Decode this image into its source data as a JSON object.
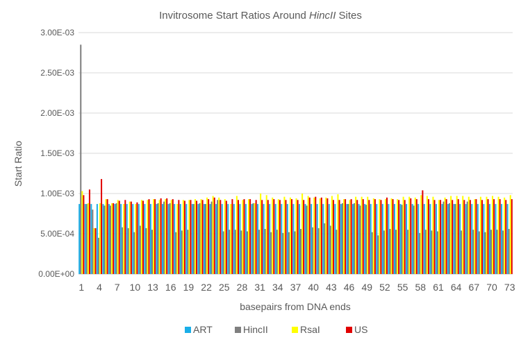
{
  "chart_data": {
    "type": "bar",
    "title_parts": [
      "Invitrosome  Start Ratios Around ",
      "HincII",
      " Sites"
    ],
    "xlabel": "basepairs from DNA ends",
    "ylabel": "Start Ratio",
    "ylim": [
      0,
      0.003
    ],
    "y_ticks": [
      {
        "value": 0,
        "label": "0.00E+00"
      },
      {
        "value": 0.0005,
        "label": "5.00E-04"
      },
      {
        "value": 0.001,
        "label": "1.00E-03"
      },
      {
        "value": 0.0015,
        "label": "1.50E-03"
      },
      {
        "value": 0.002,
        "label": "2.00E-03"
      },
      {
        "value": 0.0025,
        "label": "2.50E-03"
      },
      {
        "value": 0.003,
        "label": "3.00E-03"
      }
    ],
    "x_tick_labels": [
      "1",
      "4",
      "7",
      "10",
      "13",
      "16",
      "19",
      "22",
      "25",
      "28",
      "31",
      "34",
      "37",
      "40",
      "43",
      "46",
      "49",
      "52",
      "55",
      "58",
      "61",
      "64",
      "67",
      "70",
      "73"
    ],
    "x_tick_positions": [
      1,
      4,
      7,
      10,
      13,
      16,
      19,
      22,
      25,
      28,
      31,
      34,
      37,
      40,
      43,
      46,
      49,
      52,
      55,
      58,
      61,
      64,
      67,
      70,
      73
    ],
    "grid": true,
    "legend_position": "bottom",
    "categories": [
      1,
      2,
      3,
      4,
      5,
      6,
      7,
      8,
      9,
      10,
      11,
      12,
      13,
      14,
      15,
      16,
      17,
      18,
      19,
      20,
      21,
      22,
      23,
      24,
      25,
      26,
      27,
      28,
      29,
      30,
      31,
      32,
      33,
      34,
      35,
      36,
      37,
      38,
      39,
      40,
      41,
      42,
      43,
      44,
      45,
      46,
      47,
      48,
      49,
      50,
      51,
      52,
      53,
      54,
      55,
      56,
      57,
      58,
      59,
      60,
      61,
      62,
      63,
      64,
      65,
      66,
      67,
      68,
      69,
      70,
      71,
      72,
      73
    ],
    "series": [
      {
        "name": "ART",
        "color": "#1aaee8",
        "values": [
          0.00087,
          0.00087,
          0.00087,
          0.00087,
          0.00087,
          0.00087,
          0.00087,
          0.00087,
          0.00087,
          0.00087,
          0.00087,
          0.00087,
          0.00087,
          0.00087,
          0.00087,
          0.00087,
          0.00087,
          0.00087,
          0.00087,
          0.00087,
          0.00087,
          0.00087,
          0.00087,
          0.00087,
          0.00087,
          0.00087,
          0.00087,
          0.00087,
          0.00087,
          0.00087,
          0.00087,
          0.00087,
          0.00087,
          0.00087,
          0.00087,
          0.00087,
          0.00087,
          0.00087,
          0.00087,
          0.00087,
          0.00087,
          0.00087,
          0.00087,
          0.00087,
          0.00087,
          0.00087,
          0.00087,
          0.00087,
          0.00087,
          0.00087,
          0.00087,
          0.00087,
          0.00087,
          0.00087,
          0.00087,
          0.00087,
          0.00087,
          0.00087,
          0.00087,
          0.00087,
          0.00087,
          0.00087,
          0.00087,
          0.00087,
          0.00087,
          0.00087,
          0.00087,
          0.00087,
          0.00087,
          0.00087,
          0.00087,
          0.00087,
          0.00087
        ]
      },
      {
        "name": "HincII",
        "color": "#7f7f7f",
        "values": [
          0.00285,
          0.00087,
          0.0008,
          0.00045,
          0.00085,
          0.00085,
          0.00088,
          0.00058,
          0.00057,
          0.00052,
          0.0006,
          0.00057,
          0.00055,
          0.00088,
          0.0009,
          0.00088,
          0.00052,
          0.00054,
          0.00055,
          0.00087,
          0.00088,
          0.00087,
          0.0009,
          0.00092,
          0.00053,
          0.00055,
          0.00055,
          0.00054,
          0.00053,
          0.00088,
          0.00055,
          0.00056,
          0.00052,
          0.00055,
          0.00051,
          0.00052,
          0.00053,
          0.00056,
          0.00085,
          0.00058,
          0.00057,
          0.00063,
          0.0006,
          0.00055,
          0.00088,
          0.00087,
          0.00088,
          0.00085,
          0.00086,
          0.00052,
          0.00048,
          0.00054,
          0.00056,
          0.00055,
          0.00086,
          0.00055,
          0.00085,
          0.00051,
          0.00055,
          0.00054,
          0.00053,
          0.0009,
          0.00088,
          0.00087,
          0.00054,
          0.0009,
          0.00055,
          0.00053,
          0.00052,
          0.00055,
          0.00055,
          0.00054,
          0.00056
        ]
      },
      {
        "name": "RsaI",
        "color": "#ffff00",
        "values": [
          0.00103,
          0.00088,
          0.00057,
          0.00088,
          0.00093,
          0.00088,
          0.00092,
          0.00087,
          0.0009,
          0.00087,
          0.00092,
          0.00092,
          0.00093,
          0.00092,
          0.00093,
          0.00092,
          0.00087,
          0.00092,
          0.00092,
          0.00093,
          0.00093,
          0.00095,
          0.00097,
          0.00095,
          0.00093,
          0.00087,
          0.00097,
          0.00092,
          0.00093,
          0.00088,
          0.001,
          0.00098,
          0.00095,
          0.00093,
          0.00096,
          0.00095,
          0.00094,
          0.001,
          0.00097,
          0.00095,
          0.00094,
          0.00095,
          0.00097,
          0.00099,
          0.00093,
          0.00092,
          0.00096,
          0.00096,
          0.00096,
          0.00094,
          0.00093,
          0.00093,
          0.00094,
          0.00093,
          0.00096,
          0.00096,
          0.00095,
          0.00098,
          0.00097,
          0.00096,
          0.00092,
          0.00095,
          0.00097,
          0.00097,
          0.00097,
          0.00096,
          0.00093,
          0.00096,
          0.00096,
          0.00097,
          0.00096,
          0.00095,
          0.00098
        ]
      },
      {
        "name": "US",
        "color": "#e10000",
        "values": [
          0.00098,
          0.00105,
          0.00057,
          0.00118,
          0.00093,
          0.00088,
          0.00091,
          0.00092,
          0.0009,
          0.00089,
          0.00091,
          0.00093,
          0.00093,
          0.00094,
          0.00094,
          0.00093,
          0.00092,
          0.00091,
          0.00092,
          0.00091,
          0.00092,
          0.00093,
          0.00095,
          0.00092,
          0.00091,
          0.00093,
          0.00092,
          0.00093,
          0.00093,
          0.00092,
          0.00092,
          0.00092,
          0.00093,
          0.00092,
          0.00092,
          0.00093,
          0.00092,
          0.00092,
          0.00095,
          0.00096,
          0.00095,
          0.00094,
          0.00092,
          0.00092,
          0.00093,
          0.00093,
          0.00092,
          0.00093,
          0.00092,
          0.00093,
          0.00092,
          0.00095,
          0.00093,
          0.00092,
          0.00092,
          0.00094,
          0.00093,
          0.00104,
          0.00093,
          0.00092,
          0.00092,
          0.00093,
          0.00092,
          0.00093,
          0.00092,
          0.00092,
          0.00093,
          0.00092,
          0.00093,
          0.00093,
          0.00093,
          0.00092,
          0.00093
        ]
      }
    ]
  }
}
